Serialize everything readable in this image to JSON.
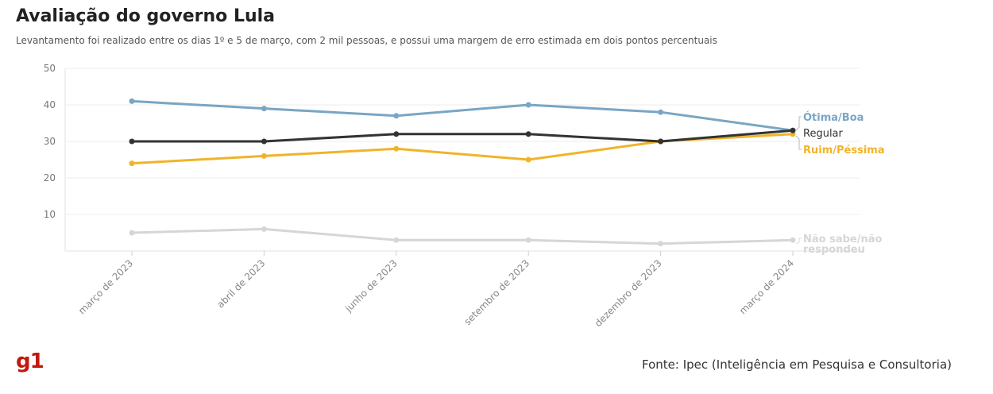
{
  "header": {
    "title": "Avaliação do governo Lula",
    "subtitle": "Levantamento foi realizado entre os dias 1º e 5 de março, com 2 mil pessoas, e possui uma margem de erro estimada em dois pontos percentuais"
  },
  "footer": {
    "source": "Fonte: Ipec (Inteligência em Pesquisa e Consultoria)",
    "logo": "g1"
  },
  "chart_data": {
    "type": "line",
    "categories": [
      "março de 2023",
      "abril de 2023",
      "junho de 2023",
      "setembro de 2023",
      "dezembro de 2023",
      "março de 2024"
    ],
    "yticks": [
      10,
      20,
      30,
      40,
      50
    ],
    "ylim": [
      0,
      50
    ],
    "grid": true,
    "series": [
      {
        "name": "Ótima/Boa",
        "color": "#7aa5c4",
        "bold": true,
        "values": [
          41,
          39,
          37,
          40,
          38,
          33
        ]
      },
      {
        "name": "Regular",
        "color": "#333333",
        "bold": false,
        "values": [
          30,
          30,
          32,
          32,
          30,
          33
        ]
      },
      {
        "name": "Ruim/Péssima",
        "color": "#f0b429",
        "bold": true,
        "values": [
          24,
          26,
          28,
          25,
          30,
          32
        ]
      },
      {
        "name": "Não sabe/não respondeu",
        "color": "#d6d6d6",
        "bold": true,
        "values": [
          5,
          6,
          3,
          3,
          2,
          3
        ]
      }
    ],
    "end_label_lines": [
      [
        "Ótima/Boa"
      ],
      [
        "Regular"
      ],
      [
        "Ruim/Péssima"
      ],
      [
        "Não sabe/não",
        "respondeu"
      ]
    ]
  }
}
